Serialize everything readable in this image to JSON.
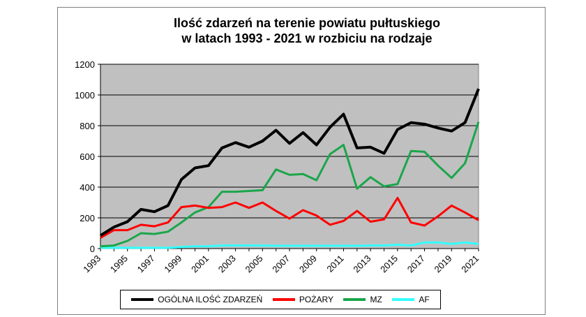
{
  "chart_data": {
    "type": "line",
    "title_line1": "Ilość zdarzeń na terenie powiatu pułtuskiego",
    "title_line2": "w latach 1993 - 2021 w rozbiciu na rodzaje",
    "xlabel": "",
    "ylabel": "",
    "ylim": [
      0,
      1200
    ],
    "yticks": [
      "0",
      "200",
      "400",
      "600",
      "800",
      "1000",
      "1200"
    ],
    "ytick_values": [
      0,
      200,
      400,
      600,
      800,
      1000,
      1200
    ],
    "x": [
      1993,
      1994,
      1995,
      1996,
      1997,
      1998,
      1999,
      2000,
      2001,
      2002,
      2003,
      2004,
      2005,
      2006,
      2007,
      2008,
      2009,
      2010,
      2011,
      2012,
      2013,
      2014,
      2015,
      2016,
      2017,
      2018,
      2019,
      2020,
      2021
    ],
    "xtick_labels": [
      "1993",
      "1995",
      "1997",
      "1999",
      "2001",
      "2003",
      "2005",
      "2007",
      "2009",
      "2011",
      "2013",
      "2015",
      "2017",
      "2019",
      "2021"
    ],
    "xtick_values": [
      1993,
      1995,
      1997,
      1999,
      2001,
      2003,
      2005,
      2007,
      2009,
      2011,
      2013,
      2015,
      2017,
      2019,
      2021
    ],
    "grid": true,
    "plot_background": "#c0c0c0",
    "legend_position": "bottom",
    "series": [
      {
        "name": "OGÓLNA ILOŚĆ ZDARZEŃ",
        "color": "#000000",
        "values": [
          85,
          140,
          175,
          255,
          240,
          280,
          450,
          525,
          540,
          655,
          690,
          660,
          700,
          770,
          685,
          755,
          675,
          790,
          875,
          655,
          660,
          620,
          775,
          820,
          810,
          785,
          765,
          820,
          1040
        ]
      },
      {
        "name": "POŻARY",
        "color": "#ff0000",
        "values": [
          70,
          120,
          120,
          155,
          145,
          170,
          270,
          280,
          265,
          270,
          300,
          265,
          300,
          245,
          195,
          250,
          215,
          155,
          180,
          245,
          175,
          190,
          330,
          170,
          150,
          210,
          280,
          235,
          185
        ]
      },
      {
        "name": "MZ",
        "color": "#1aa64a",
        "values": [
          15,
          20,
          50,
          100,
          95,
          110,
          170,
          235,
          270,
          370,
          370,
          375,
          380,
          515,
          480,
          485,
          445,
          615,
          675,
          390,
          465,
          405,
          420,
          635,
          630,
          540,
          460,
          555,
          825
        ]
      },
      {
        "name": "AF",
        "color": "#33ffff",
        "values": [
          5,
          5,
          5,
          5,
          5,
          5,
          10,
          15,
          15,
          20,
          20,
          20,
          20,
          18,
          18,
          18,
          18,
          18,
          18,
          18,
          20,
          20,
          25,
          20,
          40,
          40,
          30,
          40,
          30
        ]
      }
    ]
  }
}
